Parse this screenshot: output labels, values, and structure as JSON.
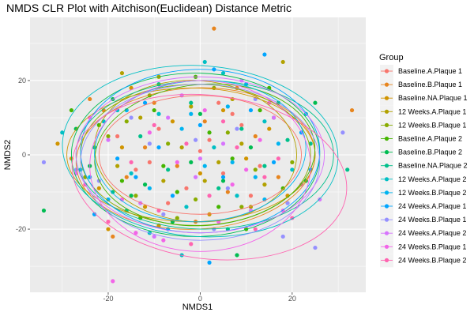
{
  "chart_data": {
    "type": "scatter",
    "title": "NMDS CLR Plot with Aitchison(Euclidean) Distance Metric",
    "xlabel": "NMDS1",
    "ylabel": "NMDS2",
    "xlim": [
      -37,
      36
    ],
    "ylim": [
      -37,
      37
    ],
    "x_ticks": [
      -20,
      0,
      20
    ],
    "x_tick_labels": [
      "-20",
      "0",
      "20"
    ],
    "y_ticks": [
      -20,
      0,
      20
    ],
    "y_tick_labels": [
      "-20",
      "0",
      "20"
    ],
    "grid": true,
    "panel_background": "#ebebeb",
    "legend": {
      "title": "Group",
      "position": "right"
    },
    "series": [
      {
        "name": "Baseline.A.Plaque 1",
        "color": "#F8766D",
        "points": [
          [
            -14,
            -4
          ],
          [
            -9,
            7
          ],
          [
            -3,
            -9
          ],
          [
            2,
            4
          ],
          [
            5,
            -5
          ],
          [
            9,
            8
          ],
          [
            13,
            -3
          ],
          [
            -7,
            -13
          ],
          [
            4,
            14
          ],
          [
            -18,
            5
          ],
          [
            11,
            -11
          ],
          [
            0,
            1
          ],
          [
            -11,
            -2
          ],
          [
            7,
            11
          ]
        ],
        "ellipse": {
          "cx": 0,
          "cy": 0,
          "rx": 22,
          "ry": 16,
          "angle": 0
        }
      },
      {
        "name": "Baseline.B.Plaque 1",
        "color": "#E7851E",
        "points": [
          [
            -21,
            12
          ],
          [
            -16,
            -6
          ],
          [
            -10,
            14
          ],
          [
            -5,
            -3
          ],
          [
            1,
            9
          ],
          [
            6,
            -10
          ],
          [
            12,
            5
          ],
          [
            17,
            -6
          ],
          [
            -24,
            15
          ],
          [
            -28,
            -1
          ],
          [
            -1,
            -18
          ],
          [
            8,
            18
          ],
          [
            3,
            34
          ],
          [
            33,
            12
          ],
          [
            -19,
            -22
          ],
          [
            -12,
            2
          ]
        ],
        "ellipse": {
          "cx": -1,
          "cy": -1,
          "rx": 26,
          "ry": 19,
          "angle": 3
        }
      },
      {
        "name": "Baseline.NA.Plaque 1",
        "color": "#D09400",
        "points": [
          [
            -22,
            -9
          ],
          [
            -17,
            2
          ],
          [
            -12,
            -14
          ],
          [
            -6,
            9
          ],
          [
            0,
            -5
          ],
          [
            5,
            12
          ],
          [
            10,
            -1
          ],
          [
            15,
            7
          ],
          [
            19,
            -11
          ],
          [
            -15,
            18
          ],
          [
            -20,
            -20
          ],
          [
            -31,
            3
          ],
          [
            -9,
            -19
          ],
          [
            2,
            -16
          ]
        ],
        "ellipse": {
          "cx": -2,
          "cy": 0,
          "rx": 27,
          "ry": 18,
          "angle": 0
        }
      },
      {
        "name": "12 Weeks.A.Plaque 1",
        "color": "#B2A100",
        "points": [
          [
            -13,
            10
          ],
          [
            -8,
            -7
          ],
          [
            -2,
            13
          ],
          [
            4,
            -2
          ],
          [
            9,
            3
          ],
          [
            14,
            -8
          ],
          [
            -4,
            2
          ],
          [
            7,
            15
          ],
          [
            -18,
            -3
          ],
          [
            11,
            -14
          ],
          [
            18,
            25
          ],
          [
            -9,
            21
          ],
          [
            -17,
            22
          ],
          [
            1,
            -7
          ]
        ],
        "ellipse": {
          "cx": -1,
          "cy": 1,
          "rx": 22,
          "ry": 19,
          "angle": -4
        }
      },
      {
        "name": "12 Weeks.B.Plaque 1",
        "color": "#89AC00",
        "points": [
          [
            -20,
            5
          ],
          [
            -14,
            -11
          ],
          [
            -7,
            3
          ],
          [
            -1,
            -12
          ],
          [
            6,
            6
          ],
          [
            12,
            -4
          ],
          [
            16,
            10
          ],
          [
            -11,
            16
          ],
          [
            3,
            18
          ],
          [
            -25,
            -6
          ],
          [
            20,
            -2
          ],
          [
            -5,
            -17
          ],
          [
            9,
            -14
          ],
          [
            -16,
            9
          ]
        ],
        "ellipse": {
          "cx": -1,
          "cy": 0,
          "rx": 25,
          "ry": 19,
          "angle": 0
        }
      },
      {
        "name": "Baseline.A.Plaque 2",
        "color": "#45B500",
        "points": [
          [
            -17,
            -7
          ],
          [
            -10,
            12
          ],
          [
            -5,
            -10
          ],
          [
            2,
            6
          ],
          [
            7,
            -1
          ],
          [
            13,
            12
          ],
          [
            18,
            -9
          ],
          [
            -13,
            -17
          ],
          [
            -22,
            8
          ],
          [
            -1,
            21
          ],
          [
            15,
            18
          ],
          [
            -8,
            -3
          ],
          [
            4,
            -14
          ],
          [
            10,
            -20
          ],
          [
            -28,
            12
          ]
        ],
        "ellipse": {
          "cx": 1,
          "cy": 0,
          "rx": 24,
          "ry": 19,
          "angle": 5
        }
      },
      {
        "name": "Baseline.B.Plaque 2",
        "color": "#00BC51",
        "points": [
          [
            -24,
            -3
          ],
          [
            -19,
            15
          ],
          [
            -12,
            -8
          ],
          [
            -6,
            -18
          ],
          [
            0,
            11
          ],
          [
            5,
            -7
          ],
          [
            11,
            2
          ],
          [
            17,
            14
          ],
          [
            23,
            -7
          ],
          [
            -27,
            7
          ],
          [
            25,
            14
          ],
          [
            -34,
            -15
          ],
          [
            -15,
            -11
          ],
          [
            8,
            -27
          ],
          [
            -2,
            -2
          ]
        ],
        "ellipse": {
          "cx": -1,
          "cy": 0,
          "rx": 27,
          "ry": 22,
          "angle": 0
        }
      },
      {
        "name": "Baseline.NA.Plaque 2",
        "color": "#00C08B",
        "points": [
          [
            -19,
            -10
          ],
          [
            -13,
            5
          ],
          [
            -7,
            -4
          ],
          [
            -2,
            14
          ],
          [
            4,
            -9
          ],
          [
            9,
            7
          ],
          [
            14,
            -3
          ],
          [
            19,
            4
          ],
          [
            -23,
            2
          ],
          [
            -9,
            19
          ],
          [
            24,
            3
          ],
          [
            -16,
            -15
          ],
          [
            6,
            -20
          ],
          [
            32,
            -4
          ]
        ],
        "ellipse": {
          "cx": 1,
          "cy": 0,
          "rx": 28,
          "ry": 20,
          "angle": 0
        }
      },
      {
        "name": "12 Weeks.A.Plaque 2",
        "color": "#00BFC4",
        "points": [
          [
            -21,
            9
          ],
          [
            -15,
            -5
          ],
          [
            -9,
            11
          ],
          [
            -3,
            -14
          ],
          [
            3,
            2
          ],
          [
            8,
            -11
          ],
          [
            14,
            9
          ],
          [
            20,
            -4
          ],
          [
            -26,
            -4
          ],
          [
            -30,
            6
          ],
          [
            23,
            11
          ],
          [
            1,
            25
          ],
          [
            -4,
            -27
          ],
          [
            -11,
            -21
          ],
          [
            -18,
            12
          ],
          [
            5,
            22
          ]
        ],
        "ellipse": {
          "cx": 0,
          "cy": 1,
          "rx": 30,
          "ry": 23,
          "angle": -4
        }
      },
      {
        "name": "12 Weeks.B.Plaque 2",
        "color": "#00B4F0",
        "points": [
          [
            -16,
            12
          ],
          [
            -11,
            -9
          ],
          [
            -4,
            7
          ],
          [
            1,
            -3
          ],
          [
            6,
            13
          ],
          [
            12,
            -6
          ],
          [
            17,
            3
          ],
          [
            -20,
            -12
          ],
          [
            -7,
            -20
          ],
          [
            10,
            19
          ],
          [
            -24,
            -6
          ],
          [
            14,
            -12
          ],
          [
            -2,
            11
          ],
          [
            7,
            -2
          ]
        ],
        "ellipse": {
          "cx": 0,
          "cy": 1,
          "rx": 23,
          "ry": 19,
          "angle": 3
        }
      },
      {
        "name": "24 Weeks.A.Plaque 1",
        "color": "#00A5FF",
        "points": [
          [
            -18,
            -1
          ],
          [
            -12,
            14
          ],
          [
            -6,
            -11
          ],
          [
            0,
            8
          ],
          [
            5,
            -6
          ],
          [
            11,
            12
          ],
          [
            16,
            -2
          ],
          [
            22,
            6
          ],
          [
            -23,
            -16
          ],
          [
            2,
            -29
          ],
          [
            14,
            27
          ],
          [
            24,
            -4
          ],
          [
            -9,
            2
          ],
          [
            3,
            23
          ],
          [
            -14,
            -6
          ]
        ],
        "ellipse": {
          "cx": 0,
          "cy": 1,
          "rx": 26,
          "ry": 22,
          "angle": 0
        }
      },
      {
        "name": "24 Weeks.B.Plaque 1",
        "color": "#9590FF",
        "points": [
          [
            -22,
            -7
          ],
          [
            -15,
            10
          ],
          [
            -8,
            -16
          ],
          [
            -1,
            4
          ],
          [
            6,
            -9
          ],
          [
            12,
            15
          ],
          [
            19,
            -13
          ],
          [
            -11,
            3
          ],
          [
            3,
            -20
          ],
          [
            18,
            -22
          ],
          [
            -27,
            -4
          ],
          [
            -34,
            -2
          ],
          [
            25,
            -25
          ],
          [
            31,
            6
          ],
          [
            8,
            7
          ]
        ],
        "ellipse": {
          "cx": 0,
          "cy": -2,
          "rx": 26,
          "ry": 21,
          "angle": 0
        }
      },
      {
        "name": "24 Weeks.A.Plaque 2",
        "color": "#D774FD",
        "points": [
          [
            -20,
            4
          ],
          [
            -13,
            -13
          ],
          [
            -7,
            10
          ],
          [
            -1,
            -6
          ],
          [
            5,
            3
          ],
          [
            11,
            -15
          ],
          [
            16,
            10
          ],
          [
            22,
            -8
          ],
          [
            -27,
            -5
          ],
          [
            -10,
            -22
          ],
          [
            9,
            20
          ],
          [
            -4,
            16
          ],
          [
            0,
            -1
          ],
          [
            26,
            -12
          ]
        ],
        "ellipse": {
          "cx": 0,
          "cy": 0,
          "rx": 27,
          "ry": 21,
          "angle": 0
        }
      },
      {
        "name": "24 Weeks.B.Plaque 1",
        "color": "#F265E8",
        "points": [
          [
            -17,
            -12
          ],
          [
            -11,
            6
          ],
          [
            -5,
            -2
          ],
          [
            1,
            12
          ],
          [
            7,
            -8
          ],
          [
            13,
            4
          ],
          [
            18,
            -15
          ],
          [
            -8,
            -23
          ],
          [
            4,
            -18
          ],
          [
            -19,
            -34
          ],
          [
            -14,
            -21
          ],
          [
            -24,
            10
          ],
          [
            10,
            -4
          ],
          [
            15,
            14
          ]
        ],
        "ellipse": {
          "cx": 0,
          "cy": -3,
          "rx": 24,
          "ry": 23,
          "angle": 0
        }
      },
      {
        "name": "24 Weeks.B.Plaque 2",
        "color": "#FF64B0",
        "points": [
          [
            -15,
            -2
          ],
          [
            -9,
            -15
          ],
          [
            -3,
            3
          ],
          [
            2,
            -11
          ],
          [
            8,
            2
          ],
          [
            14,
            -6
          ],
          [
            20,
            -17
          ],
          [
            -20,
            -18
          ],
          [
            -2,
            -24
          ],
          [
            12,
            -20
          ],
          [
            -25,
            -8
          ],
          [
            5,
            9
          ],
          [
            -10,
            8
          ],
          [
            17,
            -1
          ]
        ],
        "ellipse": {
          "cx": 2,
          "cy": -6,
          "rx": 30,
          "ry": 22,
          "angle": -7
        }
      }
    ]
  }
}
